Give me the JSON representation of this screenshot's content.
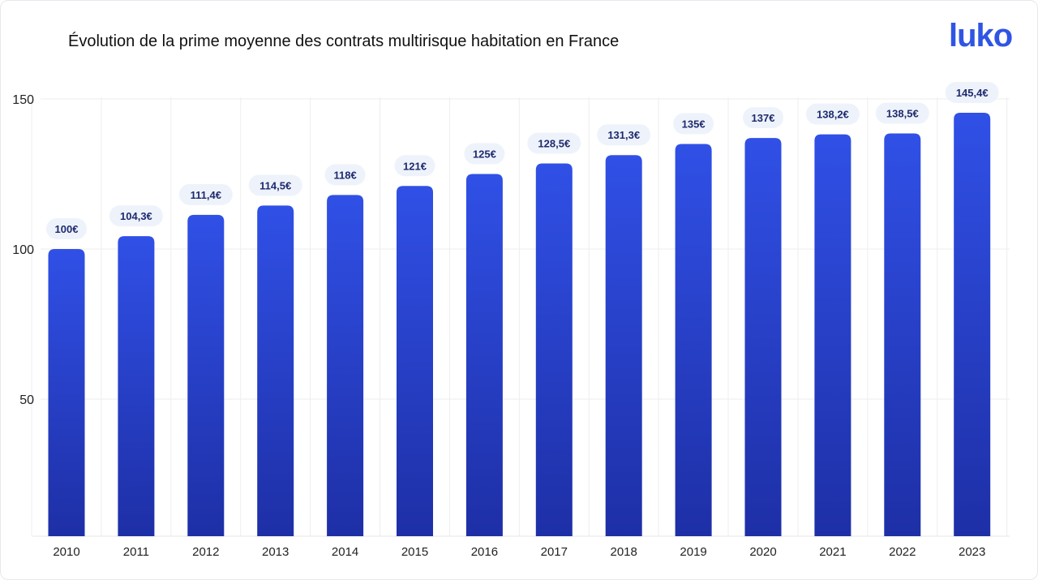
{
  "title": "Évolution de la prime moyenne des contrats multirisque habitation en France",
  "logo": "luko",
  "colors": {
    "bar_top": "#3050e6",
    "bar_bottom": "#1e2fa6",
    "label_text": "#1e2a6e",
    "label_bg": "#eef3fb",
    "grid": "#eeeeee"
  },
  "chart_data": {
    "type": "bar",
    "title": "Évolution de la prime moyenne des contrats multirisque habitation en France",
    "categories": [
      "2010",
      "2011",
      "2012",
      "2013",
      "2014",
      "2015",
      "2016",
      "2017",
      "2018",
      "2019",
      "2020",
      "2021",
      "2022",
      "2023"
    ],
    "values": [
      100,
      104.3,
      111.4,
      114.5,
      118,
      121,
      125,
      128.5,
      131.3,
      135,
      137,
      138.2,
      138.5,
      145.4
    ],
    "data_labels": [
      "100€",
      "104,3€",
      "111,4€",
      "114,5€",
      "118€",
      "121€",
      "125€",
      "128,5€",
      "131,3€",
      "135€",
      "137€",
      "138,2€",
      "138,5€",
      "145,4€"
    ],
    "yticks": [
      50,
      100,
      150
    ],
    "ylim": [
      0,
      150
    ],
    "grid": true,
    "xlabel": "",
    "ylabel": ""
  }
}
